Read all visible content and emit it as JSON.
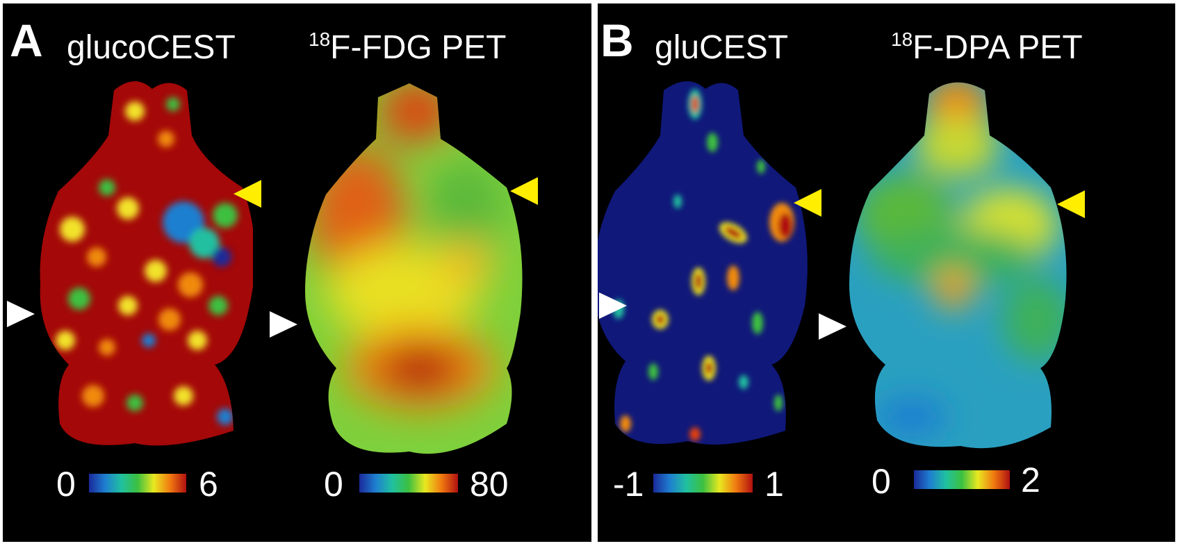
{
  "panels": [
    {
      "letter": "A",
      "images": [
        {
          "title_sup": "",
          "title": "glucoCEST",
          "cbar_min": "0",
          "cbar_max": "6"
        },
        {
          "title_sup": "18",
          "title": "F-FDG PET",
          "cbar_min": "0",
          "cbar_max": "80"
        }
      ]
    },
    {
      "letter": "B",
      "images": [
        {
          "title_sup": "",
          "title": "gluCEST",
          "cbar_min": "-1",
          "cbar_max": "1"
        },
        {
          "title_sup": "18",
          "title": "F-DPA PET",
          "cbar_min": "0",
          "cbar_max": "2"
        }
      ]
    }
  ],
  "colors": {
    "background": "#000000",
    "arrow_white": "#ffffff",
    "arrow_yellow": "#ffee00",
    "colormap": [
      "#1a2a9a",
      "#1e7fd0",
      "#20c0a0",
      "#3cc040",
      "#e8e820",
      "#f07a10",
      "#b01010"
    ]
  }
}
